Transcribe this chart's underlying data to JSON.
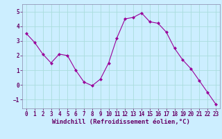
{
  "x": [
    0,
    1,
    2,
    3,
    4,
    5,
    6,
    7,
    8,
    9,
    10,
    11,
    12,
    13,
    14,
    15,
    16,
    17,
    18,
    19,
    20,
    21,
    22,
    23
  ],
  "y": [
    3.5,
    2.9,
    2.1,
    1.5,
    2.1,
    2.0,
    1.0,
    0.2,
    -0.05,
    0.4,
    1.5,
    3.2,
    4.5,
    4.6,
    4.9,
    4.3,
    4.2,
    3.6,
    2.5,
    1.7,
    1.1,
    0.3,
    -0.5,
    -1.3
  ],
  "line_color": "#990099",
  "marker": "D",
  "marker_size": 2.0,
  "background_color": "#cceeff",
  "grid_color": "#aadddd",
  "xlabel": "Windchill (Refroidissement éolien,°C)",
  "xlabel_fontsize": 6.5,
  "xlabel_color": "#660066",
  "xlim": [
    -0.5,
    23.5
  ],
  "ylim": [
    -1.6,
    5.5
  ],
  "yticks": [
    -1,
    0,
    1,
    2,
    3,
    4,
    5
  ],
  "xticks": [
    0,
    1,
    2,
    3,
    4,
    5,
    6,
    7,
    8,
    9,
    10,
    11,
    12,
    13,
    14,
    15,
    16,
    17,
    18,
    19,
    20,
    21,
    22,
    23
  ],
  "tick_fontsize": 5.5,
  "tick_color": "#660066",
  "spine_color": "#8888aa",
  "linewidth": 0.8
}
